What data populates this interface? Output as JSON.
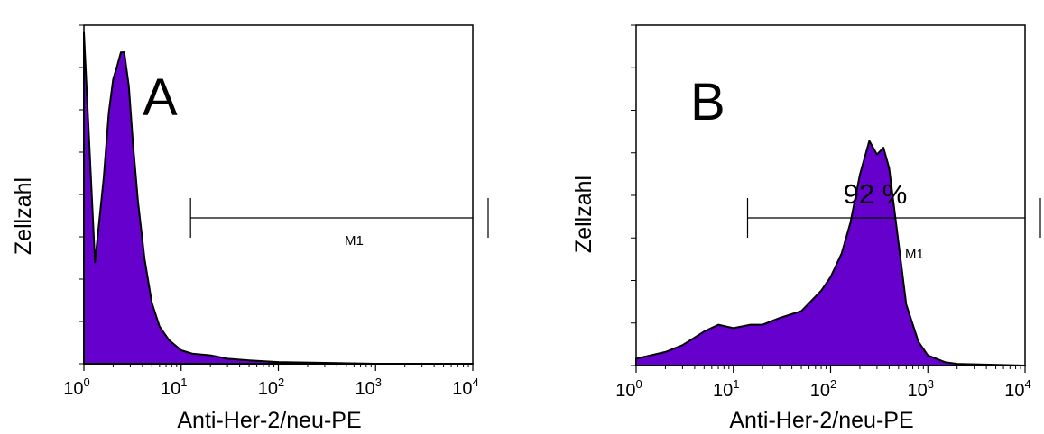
{
  "chart_data": [
    {
      "type": "area",
      "panel_label": "A",
      "xlabel": "Anti-Her-2/neu-PE",
      "ylabel": "Zellzahl",
      "x_scale": "log",
      "xlim": [
        1,
        10000
      ],
      "x_ticks": [
        "10^0",
        "10^1",
        "10^2",
        "10^3",
        "10^4"
      ],
      "ylim": [
        0,
        1
      ],
      "fill_color": "#6600cc",
      "gate": {
        "label": "M1",
        "x_range": [
          12.5,
          10000
        ],
        "level": 0.78
      },
      "annotation": "",
      "series": [
        {
          "x": [
            1,
            1.3,
            1.6,
            1.8,
            2.0,
            2.2,
            2.4,
            2.6,
            2.9,
            3.2,
            3.6,
            4.2,
            5.0,
            6.0,
            7.5,
            10,
            13,
            20,
            30,
            50,
            100,
            1000,
            10000
          ],
          "y": [
            0.98,
            0.3,
            0.55,
            0.74,
            0.84,
            0.88,
            0.92,
            0.92,
            0.82,
            0.65,
            0.48,
            0.31,
            0.18,
            0.11,
            0.07,
            0.04,
            0.03,
            0.025,
            0.015,
            0.01,
            0.005,
            0.0,
            0.0
          ]
        }
      ]
    },
    {
      "type": "area",
      "panel_label": "B",
      "xlabel": "Anti-Her-2/neu-PE",
      "ylabel": "Zellzahl",
      "x_scale": "log",
      "xlim": [
        1,
        10000
      ],
      "x_ticks": [
        "10^0",
        "10^1",
        "10^2",
        "10^3",
        "10^4"
      ],
      "ylim": [
        0,
        1
      ],
      "fill_color": "#6600cc",
      "gate": {
        "label": "M1",
        "x_range": [
          14,
          10000
        ],
        "level": 0.44
      },
      "annotation": "92 %",
      "series": [
        {
          "x": [
            1,
            2,
            3,
            5,
            7,
            10,
            15,
            20,
            30,
            50,
            80,
            100,
            130,
            160,
            200,
            250,
            300,
            350,
            400,
            500,
            600,
            800,
            1000,
            1500,
            2000,
            10000
          ],
          "y": [
            0.02,
            0.04,
            0.06,
            0.1,
            0.12,
            0.11,
            0.12,
            0.12,
            0.14,
            0.16,
            0.22,
            0.26,
            0.33,
            0.42,
            0.56,
            0.66,
            0.62,
            0.64,
            0.58,
            0.36,
            0.18,
            0.07,
            0.03,
            0.01,
            0.005,
            0.0
          ]
        }
      ]
    }
  ]
}
